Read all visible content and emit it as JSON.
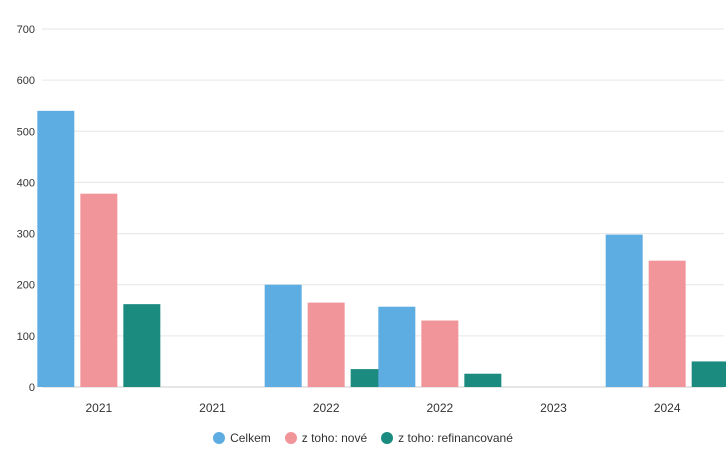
{
  "chart_data": {
    "type": "bar",
    "categories": [
      "2021",
      "2021",
      "2022",
      "2022",
      "2023",
      "2024"
    ],
    "series": [
      {
        "name": "Celkem",
        "color": "#5dade2",
        "values": [
          540,
          null,
          200,
          157,
          null,
          298
        ]
      },
      {
        "name": "z toho: nové",
        "color": "#f1959b",
        "values": [
          378,
          null,
          165,
          130,
          null,
          247
        ]
      },
      {
        "name": "z toho: refinancované",
        "color": "#1b8a7f",
        "values": [
          162,
          null,
          35,
          26,
          null,
          50
        ]
      }
    ],
    "yticks": [
      "0",
      "100",
      "200",
      "300",
      "400",
      "500",
      "600",
      "700"
    ],
    "ylim": [
      0,
      700
    ],
    "grid": true,
    "legend_position": "bottom"
  }
}
